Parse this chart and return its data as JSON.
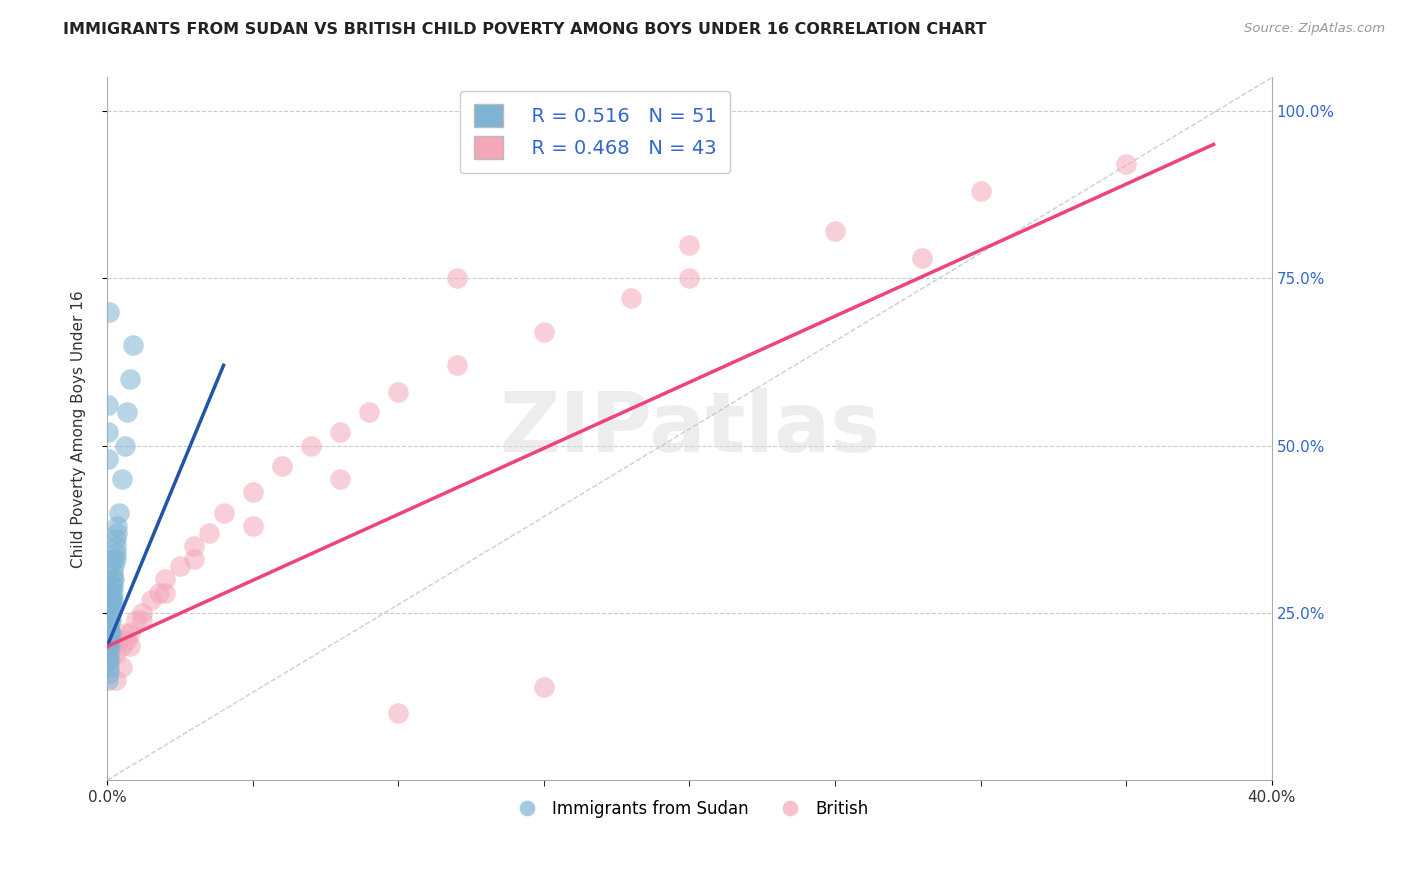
{
  "title": "IMMIGRANTS FROM SUDAN VS BRITISH CHILD POVERTY AMONG BOYS UNDER 16 CORRELATION CHART",
  "source": "Source: ZipAtlas.com",
  "ylabel": "Child Poverty Among Boys Under 16",
  "xmin": 0.0,
  "xmax": 0.4,
  "ymin": 0.0,
  "ymax": 1.05,
  "ytick_vals": [
    0.25,
    0.5,
    0.75,
    1.0
  ],
  "ytick_labels_right": [
    "25.0%",
    "50.0%",
    "75.0%",
    "100.0%"
  ],
  "xtick_vals": [
    0.0,
    0.4
  ],
  "xtick_labels": [
    "0.0%",
    "40.0%"
  ],
  "legend_r1": "R = 0.516",
  "legend_n1": "N = 51",
  "legend_r2": "R = 0.468",
  "legend_n2": "N = 43",
  "color_blue": "#7FB3D3",
  "color_pink": "#F4A7B9",
  "color_line_blue": "#2255AA",
  "color_line_pink": "#EE4477",
  "grid_color": "#CCCCCC",
  "diag_color": "#AABBDD",
  "blue_x": [
    0.0002,
    0.0003,
    0.0004,
    0.0005,
    0.0005,
    0.0006,
    0.0007,
    0.0008,
    0.0008,
    0.0009,
    0.001,
    0.001,
    0.001,
    0.0012,
    0.0013,
    0.0014,
    0.0015,
    0.0015,
    0.0016,
    0.0018,
    0.002,
    0.002,
    0.002,
    0.0022,
    0.0024,
    0.0025,
    0.003,
    0.003,
    0.003,
    0.0035,
    0.0003,
    0.0005,
    0.0006,
    0.0008,
    0.001,
    0.0012,
    0.0015,
    0.002,
    0.0025,
    0.003,
    0.0035,
    0.004,
    0.005,
    0.006,
    0.007,
    0.008,
    0.009,
    0.0002,
    0.0003,
    0.0004,
    0.0007
  ],
  "blue_y": [
    0.2,
    0.21,
    0.18,
    0.22,
    0.19,
    0.2,
    0.22,
    0.21,
    0.23,
    0.22,
    0.24,
    0.22,
    0.25,
    0.26,
    0.27,
    0.25,
    0.28,
    0.26,
    0.27,
    0.29,
    0.28,
    0.3,
    0.31,
    0.29,
    0.32,
    0.33,
    0.35,
    0.34,
    0.36,
    0.38,
    0.15,
    0.16,
    0.17,
    0.18,
    0.2,
    0.22,
    0.24,
    0.27,
    0.3,
    0.33,
    0.37,
    0.4,
    0.45,
    0.5,
    0.55,
    0.6,
    0.65,
    0.48,
    0.52,
    0.56,
    0.7
  ],
  "pink_x": [
    0.001,
    0.002,
    0.003,
    0.004,
    0.005,
    0.006,
    0.007,
    0.008,
    0.01,
    0.012,
    0.015,
    0.018,
    0.02,
    0.025,
    0.03,
    0.035,
    0.04,
    0.05,
    0.06,
    0.07,
    0.08,
    0.09,
    0.1,
    0.12,
    0.15,
    0.18,
    0.2,
    0.25,
    0.3,
    0.35,
    0.003,
    0.005,
    0.008,
    0.012,
    0.02,
    0.03,
    0.05,
    0.08,
    0.12,
    0.2,
    0.1,
    0.15,
    0.28
  ],
  "pink_y": [
    0.18,
    0.2,
    0.19,
    0.21,
    0.2,
    0.22,
    0.21,
    0.22,
    0.24,
    0.25,
    0.27,
    0.28,
    0.3,
    0.32,
    0.35,
    0.37,
    0.4,
    0.43,
    0.47,
    0.5,
    0.52,
    0.55,
    0.58,
    0.62,
    0.67,
    0.72,
    0.75,
    0.82,
    0.88,
    0.92,
    0.15,
    0.17,
    0.2,
    0.24,
    0.28,
    0.33,
    0.38,
    0.45,
    0.75,
    0.8,
    0.1,
    0.14,
    0.78
  ],
  "blue_line_x0": 0.0,
  "blue_line_x1": 0.04,
  "blue_line_y0": 0.2,
  "blue_line_y1": 0.62,
  "pink_line_x0": 0.0,
  "pink_line_x1": 0.38,
  "pink_line_y0": 0.2,
  "pink_line_y1": 0.95
}
